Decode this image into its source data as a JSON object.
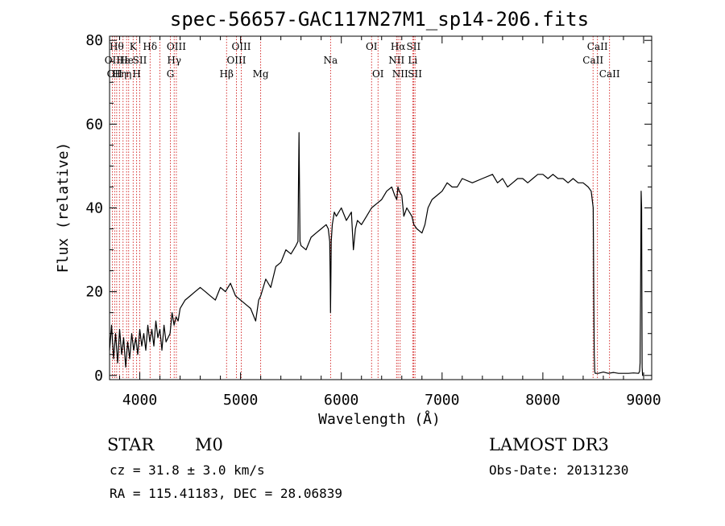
{
  "chart_data": {
    "type": "line",
    "title": "spec-56657-GAC117N27M1_sp14-206.fits",
    "xlabel": "Wavelength (Å)",
    "ylabel": "Flux (relative)",
    "xlim": [
      3700,
      9080
    ],
    "ylim": [
      -1,
      81
    ],
    "xticks": [
      4000,
      5000,
      6000,
      7000,
      8000,
      9000
    ],
    "yticks": [
      0,
      20,
      40,
      60,
      80
    ],
    "grid": false,
    "series": [
      {
        "x": [
          3700,
          3720,
          3740,
          3760,
          3780,
          3800,
          3820,
          3840,
          3860,
          3880,
          3900,
          3920,
          3940,
          3960,
          3980,
          4000,
          4020,
          4040,
          4060,
          4080,
          4100,
          4120,
          4140,
          4160,
          4180,
          4200,
          4220,
          4240,
          4260,
          4280,
          4300,
          4320,
          4340,
          4360,
          4380,
          4400,
          4450,
          4500,
          4550,
          4600,
          4650,
          4700,
          4750,
          4800,
          4850,
          4900,
          4950,
          5000,
          5050,
          5100,
          5150,
          5180,
          5200,
          5250,
          5300,
          5350,
          5400,
          5450,
          5500,
          5550,
          5570,
          5575,
          5580,
          5585,
          5590,
          5600,
          5650,
          5700,
          5750,
          5800,
          5850,
          5870,
          5885,
          5890,
          5893,
          5896,
          5900,
          5910,
          5930,
          5950,
          6000,
          6050,
          6100,
          6120,
          6140,
          6160,
          6200,
          6250,
          6300,
          6350,
          6400,
          6450,
          6500,
          6530,
          6550,
          6562,
          6575,
          6600,
          6620,
          6650,
          6700,
          6720,
          6750,
          6800,
          6830,
          6860,
          6900,
          6950,
          7000,
          7050,
          7100,
          7150,
          7200,
          7300,
          7400,
          7500,
          7550,
          7600,
          7650,
          7700,
          7750,
          7800,
          7850,
          7900,
          7950,
          8000,
          8050,
          8100,
          8150,
          8200,
          8250,
          8300,
          8350,
          8400,
          8450,
          8480,
          8500,
          8505,
          8510,
          8515,
          8520,
          8530,
          8550,
          8600,
          8650,
          8700,
          8750,
          8800,
          8850,
          8900,
          8950,
          8960,
          8965,
          8970,
          8975,
          8980,
          8985,
          8990,
          8995,
          9000
        ],
        "y": [
          6,
          12,
          4,
          10,
          3,
          11,
          5,
          9,
          2,
          8,
          4,
          10,
          6,
          9,
          5,
          11,
          7,
          10,
          6,
          12,
          8,
          11,
          7,
          13,
          9,
          11,
          6,
          12,
          8,
          9,
          10,
          15,
          12,
          14,
          13,
          16,
          18,
          19,
          20,
          21,
          20,
          19,
          18,
          21,
          20,
          22,
          19,
          18,
          17,
          16,
          13,
          18,
          19,
          23,
          21,
          26,
          27,
          30,
          29,
          31,
          32,
          45,
          58,
          45,
          32,
          31,
          30,
          33,
          34,
          35,
          36,
          35,
          32,
          22,
          15,
          22,
          32,
          36,
          39,
          38,
          40,
          37,
          39,
          30,
          35,
          37,
          36,
          38,
          40,
          41,
          42,
          44,
          45,
          43,
          42,
          45,
          44,
          43,
          38,
          40,
          38,
          36,
          35,
          34,
          36,
          40,
          42,
          43,
          44,
          46,
          45,
          45,
          47,
          46,
          47,
          48,
          46,
          47,
          45,
          46,
          47,
          47,
          46,
          47,
          48,
          48,
          47,
          48,
          47,
          47,
          46,
          47,
          46,
          46,
          45,
          44,
          40,
          20,
          5,
          1,
          0.5,
          0.5,
          0.5,
          0.8,
          0.5,
          0.7,
          0.5,
          0.5,
          0.5,
          0.6,
          0.5,
          1,
          3,
          20,
          44,
          40,
          2,
          0,
          0,
          0
        ]
      }
    ],
    "lines": [
      {
        "x": 3727,
        "label": "OII",
        "row": 1
      },
      {
        "x": 3750,
        "label": "OII",
        "row": 2
      },
      {
        "x": 3771,
        "label": "Hθ",
        "row": 0
      },
      {
        "x": 3798,
        "label": "Hη",
        "row": 2
      },
      {
        "x": 3834,
        "label": "Hε",
        "row": 1
      },
      {
        "x": 3869,
        "label": "He",
        "row": 1
      },
      {
        "x": 3890,
        "label": "η",
        "row": 2
      },
      {
        "x": 3934,
        "label": "K",
        "row": 0
      },
      {
        "x": 3969,
        "label": "H",
        "row": 2
      },
      {
        "x": 4000,
        "label": "SII",
        "row": 1
      },
      {
        "x": 4102,
        "label": "Hδ",
        "row": 0
      },
      {
        "x": 4200,
        "label": "",
        "row": 0
      },
      {
        "x": 4304,
        "label": "G",
        "row": 2
      },
      {
        "x": 4341,
        "label": "Hγ",
        "row": 1
      },
      {
        "x": 4363,
        "label": "OIII",
        "row": 0
      },
      {
        "x": 4861,
        "label": "Hβ",
        "row": 2
      },
      {
        "x": 4959,
        "label": "OIII",
        "row": 1
      },
      {
        "x": 5007,
        "label": "OIII",
        "row": 0
      },
      {
        "x": 5200,
        "label": "Mg",
        "row": 2
      },
      {
        "x": 5893,
        "label": "Na",
        "row": 1
      },
      {
        "x": 6300,
        "label": "OI",
        "row": 0
      },
      {
        "x": 6364,
        "label": "OI",
        "row": 2
      },
      {
        "x": 6548,
        "label": "NII",
        "row": 1
      },
      {
        "x": 6563,
        "label": "Hα",
        "row": 0
      },
      {
        "x": 6584,
        "label": "NII",
        "row": 2
      },
      {
        "x": 6708,
        "label": "Li",
        "row": 1
      },
      {
        "x": 6717,
        "label": "SII",
        "row": 0
      },
      {
        "x": 6731,
        "label": "SII",
        "row": 2
      },
      {
        "x": 8498,
        "label": "CaII",
        "row": 1
      },
      {
        "x": 8542,
        "label": "CaII",
        "row": 0
      },
      {
        "x": 8662,
        "label": "CaII",
        "row": 2
      }
    ]
  },
  "info": {
    "class": "STAR",
    "subclass": "M0",
    "cz": "cz = 31.8 ± 3.0 km/s",
    "radec": "RA = 115.41183, DEC =  28.06839",
    "survey": "LAMOST DR3",
    "obs_date": "Obs-Date: 20131230"
  },
  "colors": {
    "spectrum": "#000000",
    "line_markers": "#cc0000",
    "axes": "#000000"
  }
}
